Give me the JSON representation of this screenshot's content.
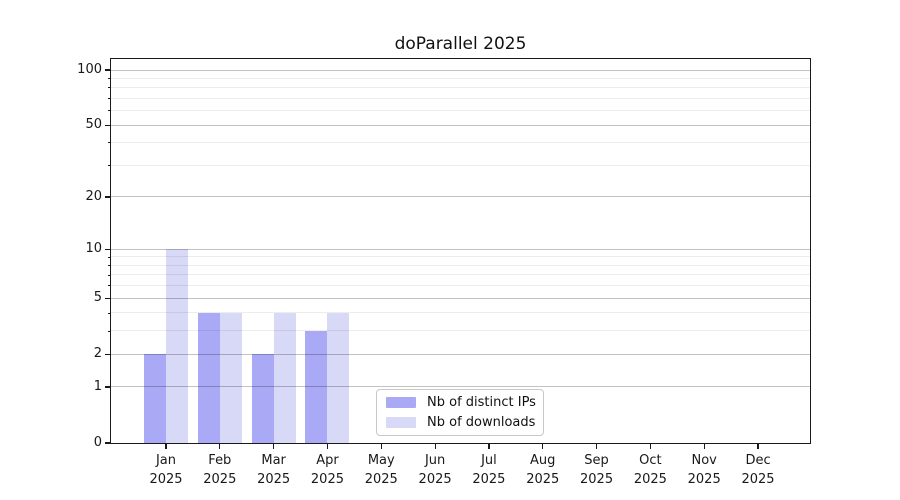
{
  "title": "doParallel 2025",
  "chart_data": {
    "type": "bar",
    "title": "doParallel 2025",
    "categories": [
      "Jan",
      "Feb",
      "Mar",
      "Apr",
      "May",
      "Jun",
      "Jul",
      "Aug",
      "Sep",
      "Oct",
      "Nov",
      "Dec"
    ],
    "category_year": "2025",
    "series": [
      {
        "name": "Nb of distinct IPs",
        "color": "#a9a9f5",
        "values": [
          2,
          4,
          2,
          3,
          0,
          0,
          0,
          0,
          0,
          0,
          0,
          0
        ]
      },
      {
        "name": "Nb of downloads",
        "color": "#d8d8f7",
        "values": [
          10,
          4,
          4,
          4,
          0,
          0,
          0,
          0,
          0,
          0,
          0,
          0
        ]
      }
    ],
    "xlabel": "",
    "ylabel": "",
    "yscale": "log1p",
    "ylim": [
      0,
      115
    ],
    "y_major_ticks": [
      0,
      1,
      2,
      5,
      10,
      20,
      50,
      100
    ],
    "y_minor_ticks": [
      3,
      4,
      6,
      7,
      8,
      9,
      30,
      40,
      60,
      70,
      80,
      90
    ],
    "grid": true,
    "legend_position": "lower center"
  }
}
